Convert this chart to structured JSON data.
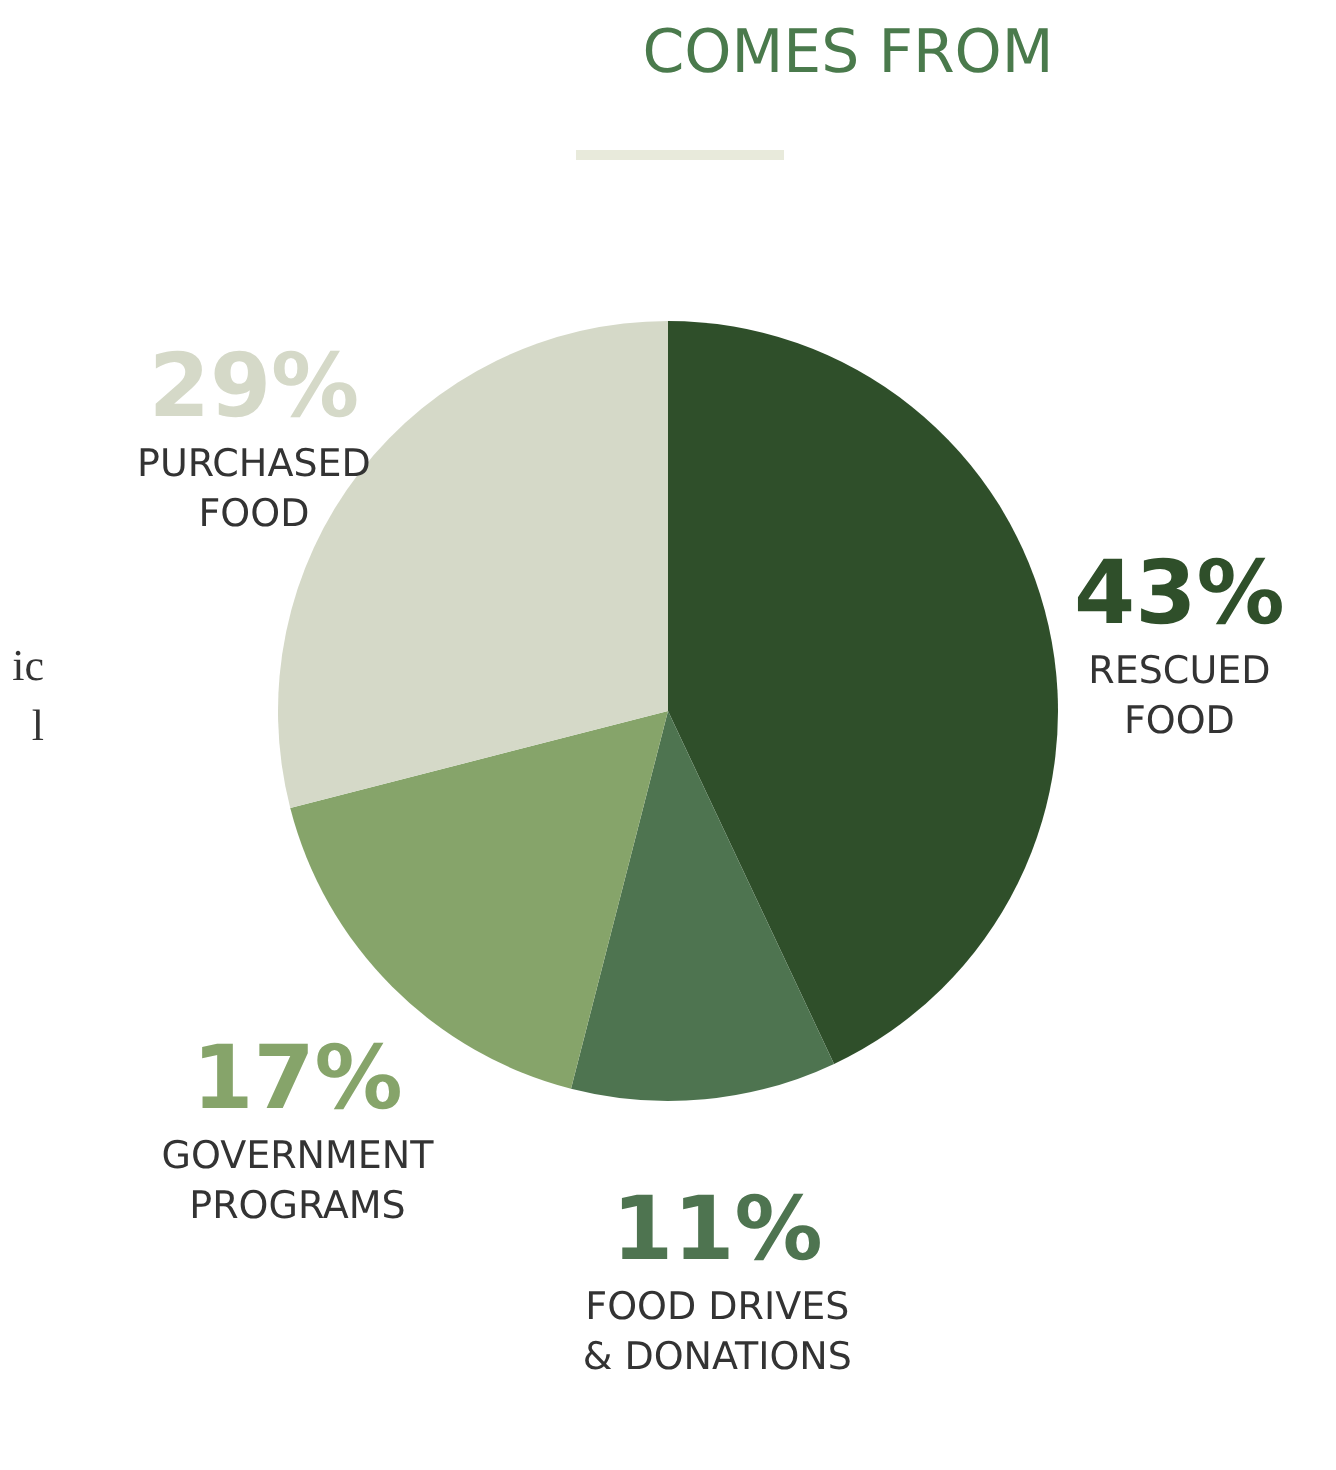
{
  "chart_data": {
    "type": "pie",
    "title": "COMES FROM",
    "categories": [
      "RESCUED FOOD",
      "FOOD DRIVES & DONATIONS",
      "GOVERNMENT PROGRAMS",
      "PURCHASED FOOD"
    ],
    "values": [
      43,
      11,
      17,
      29
    ],
    "value_labels": [
      "43%",
      "11%",
      "17%",
      "29%"
    ],
    "colors": [
      "#2f4f2a",
      "#4e7450",
      "#86a46a",
      "#d5d9c8"
    ],
    "annotations": [
      "ic",
      "l"
    ]
  }
}
